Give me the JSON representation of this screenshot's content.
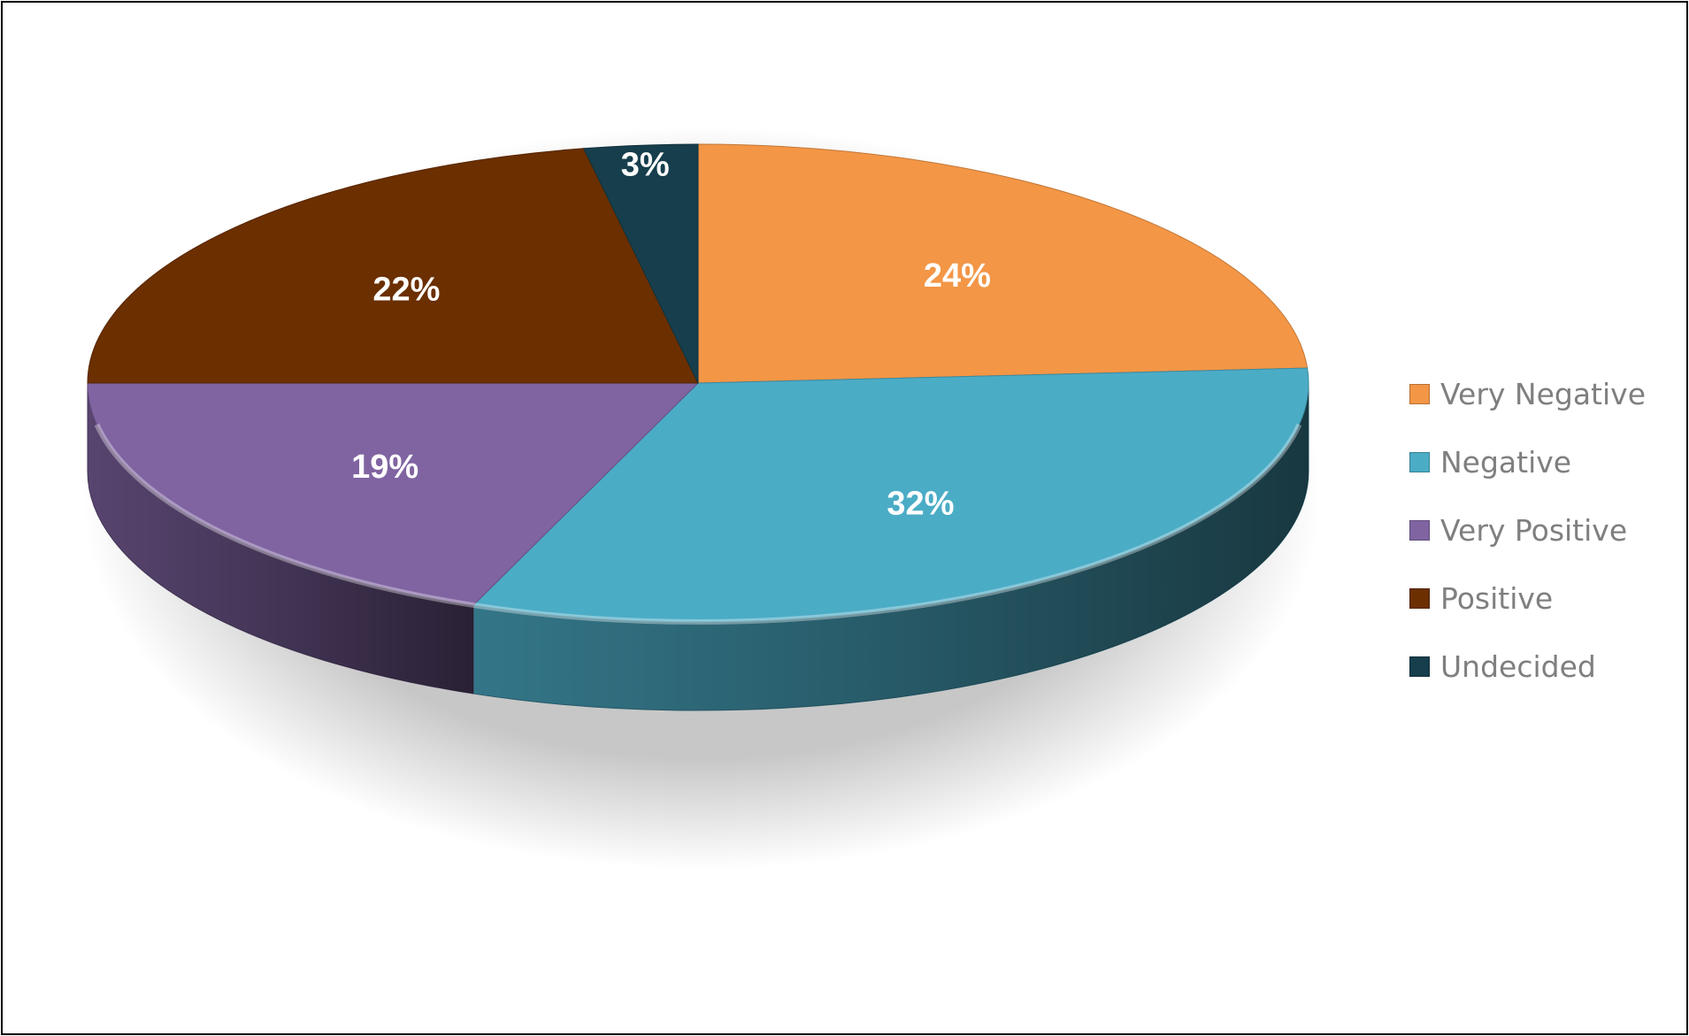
{
  "chart_data": {
    "type": "pie",
    "style": "3d",
    "categories": [
      "Very Negative",
      "Negative",
      "Very Positive",
      "Positive",
      "Undecided"
    ],
    "values": [
      24,
      32,
      19,
      22,
      3
    ],
    "data_labels": [
      "24%",
      "32%",
      "19%",
      "22%",
      "3%"
    ],
    "colors": [
      "#f39646",
      "#4bacc6",
      "#8064a2",
      "#6b2f00",
      "#163e4c"
    ],
    "legend_position": "right",
    "start_angle_deg": 90,
    "direction": "clockwise"
  },
  "legend": {
    "items": [
      {
        "label": "Very Negative",
        "color": "#f39646"
      },
      {
        "label": "Negative",
        "color": "#4bacc6"
      },
      {
        "label": "Very Positive",
        "color": "#8064a2"
      },
      {
        "label": "Positive",
        "color": "#6b2f00"
      },
      {
        "label": "Undecided",
        "color": "#163e4c"
      }
    ]
  }
}
